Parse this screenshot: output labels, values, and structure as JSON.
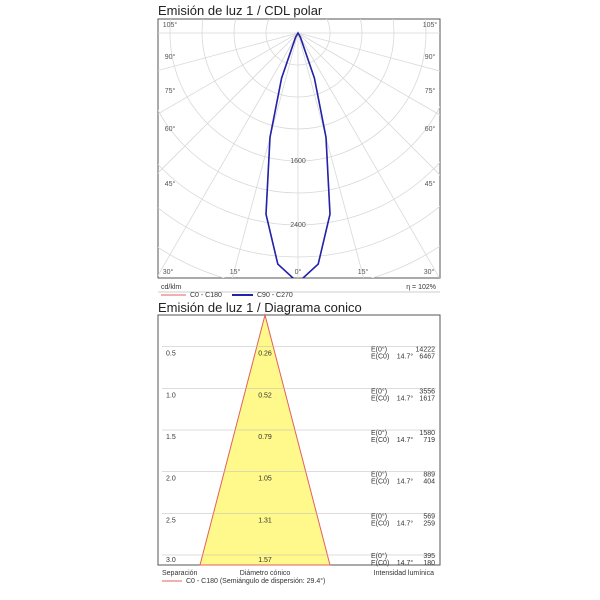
{
  "polar": {
    "title": "Emisión de luz 1 / CDL polar",
    "angle_labels_top": [
      "105°",
      "105°",
      "90°",
      "90°",
      "75°",
      "75°",
      "60°",
      "60°",
      "45°",
      "45°"
    ],
    "angle_labels_bottom": [
      "30°",
      "15°",
      "0°",
      "15°",
      "30°"
    ],
    "radial_labels": [
      "1600",
      "2400"
    ],
    "unit": "cd/klm",
    "efficiency": "η = 102%",
    "legend": [
      {
        "label": "C0 - C180",
        "color": "#e06060"
      },
      {
        "label": "C90 - C270",
        "color": "#2222aa"
      }
    ]
  },
  "cone": {
    "title": "Emisión de luz 1 / Diagrama conico",
    "footer": {
      "col1": "Separación",
      "col2": "Diámetro cónico",
      "col3": "Intensidad lumínica",
      "legend": "C0 - C180 (Semiángulo de dispersión: 29.4°)"
    }
  },
  "chart_data": [
    {
      "type": "polar",
      "title": "Emisión de luz 1 / CDL polar",
      "unit": "cd/klm",
      "radial_ticks": [
        1600,
        2400
      ],
      "series": [
        {
          "name": "C0 - C180",
          "color": "#e06060",
          "angles_deg": [
            0,
            5,
            10,
            15,
            20,
            30,
            90
          ],
          "values": [
            3120,
            2900,
            2300,
            1350,
            600,
            60,
            0
          ]
        },
        {
          "name": "C90 - C270",
          "color": "#2222aa",
          "angles_deg": [
            0,
            5,
            10,
            15,
            20,
            30,
            90
          ],
          "values": [
            3120,
            2900,
            2300,
            1350,
            600,
            60,
            0
          ]
        }
      ]
    },
    {
      "type": "table",
      "title": "Emisión de luz 1 / Diagrama conico",
      "columns": [
        "Separación",
        "Diámetro cónico",
        "E(0°)",
        "E(C0)"
      ],
      "rows": [
        {
          "distance": "0.5",
          "diameter": "0.26",
          "angle": "14.7°",
          "e0": "14222",
          "ec0": "6467"
        },
        {
          "distance": "1.0",
          "diameter": "0.52",
          "angle": "14.7°",
          "e0": "3556",
          "ec0": "1617"
        },
        {
          "distance": "1.5",
          "diameter": "0.79",
          "angle": "14.7°",
          "e0": "1580",
          "ec0": "719"
        },
        {
          "distance": "2.0",
          "diameter": "1.05",
          "angle": "14.7°",
          "e0": "889",
          "ec0": "404"
        },
        {
          "distance": "2.5",
          "diameter": "1.31",
          "angle": "14.7°",
          "e0": "569",
          "ec0": "259"
        },
        {
          "distance": "3.0",
          "diameter": "1.57",
          "angle": "14.7°",
          "e0": "395",
          "ec0": "180"
        }
      ],
      "e0_label": "E(0°)",
      "ec0_label": "E(C0)"
    }
  ]
}
